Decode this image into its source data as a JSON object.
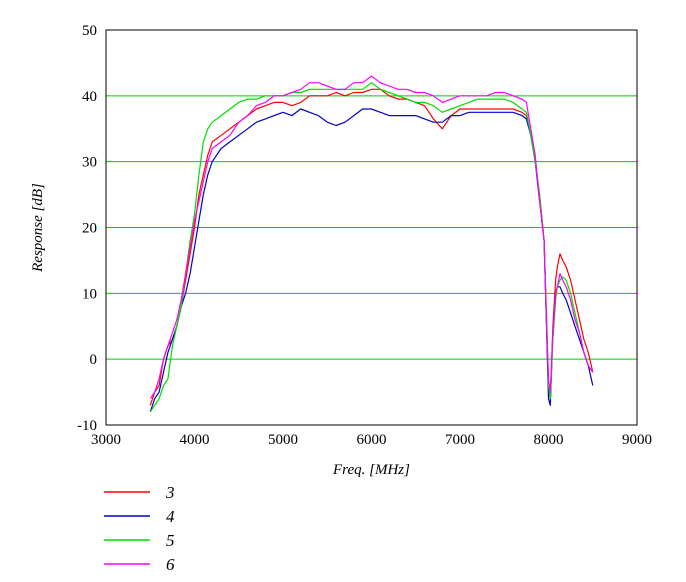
{
  "chart_data": {
    "type": "line",
    "title": "",
    "xlabel": "Freq. [MHz]",
    "ylabel": "Response [dB]",
    "xlim": [
      3000,
      9000
    ],
    "ylim": [
      -10,
      50
    ],
    "xticks": [
      3000,
      4000,
      5000,
      6000,
      7000,
      8000,
      9000
    ],
    "yticks": [
      -10,
      0,
      10,
      20,
      30,
      40,
      50
    ],
    "grid": "horizontal",
    "legend_position": "bottom-left",
    "series": [
      {
        "name": "3",
        "color": "#ff0000",
        "x": [
          3500,
          3550,
          3600,
          3650,
          3700,
          3750,
          3800,
          3850,
          3900,
          3950,
          4000,
          4050,
          4100,
          4150,
          4200,
          4300,
          4400,
          4500,
          4600,
          4700,
          4800,
          4900,
          5000,
          5100,
          5200,
          5300,
          5400,
          5500,
          5600,
          5700,
          5800,
          5900,
          6000,
          6100,
          6200,
          6300,
          6400,
          6500,
          6600,
          6700,
          6800,
          6900,
          7000,
          7100,
          7200,
          7300,
          7400,
          7500,
          7600,
          7700,
          7750,
          7800,
          7850,
          7900,
          7950,
          8000,
          8020,
          8050,
          8080,
          8100,
          8130,
          8160,
          8200,
          8250,
          8300,
          8350,
          8400,
          8450,
          8500
        ],
        "values": [
          -7,
          -5,
          -4,
          0,
          2,
          3,
          5,
          8,
          12,
          16,
          20,
          25,
          28,
          31,
          33,
          34,
          35,
          36,
          37,
          38,
          38.5,
          39,
          39,
          38.5,
          39,
          40,
          40,
          40,
          40.5,
          40,
          40.5,
          40.5,
          41,
          41,
          40,
          39.5,
          39.5,
          39,
          38.5,
          36.5,
          35,
          37,
          38,
          38,
          38,
          38,
          38,
          38,
          38,
          37.5,
          37,
          34,
          30,
          25,
          18,
          -5,
          -6,
          5,
          12,
          14,
          16,
          15,
          14,
          12,
          9,
          6,
          3,
          1,
          -2
        ]
      },
      {
        "name": "4",
        "color": "#0000cc",
        "x": [
          3500,
          3550,
          3600,
          3650,
          3700,
          3750,
          3800,
          3850,
          3900,
          3950,
          4000,
          4050,
          4100,
          4150,
          4200,
          4300,
          4400,
          4500,
          4600,
          4700,
          4800,
          4900,
          5000,
          5100,
          5200,
          5300,
          5400,
          5500,
          5600,
          5700,
          5800,
          5900,
          6000,
          6100,
          6200,
          6300,
          6400,
          6500,
          6600,
          6700,
          6800,
          6900,
          7000,
          7100,
          7200,
          7300,
          7400,
          7500,
          7600,
          7700,
          7750,
          7800,
          7850,
          7900,
          7950,
          8000,
          8020,
          8050,
          8080,
          8100,
          8130,
          8160,
          8200,
          8250,
          8300,
          8350,
          8400,
          8450,
          8500
        ],
        "values": [
          -8,
          -6,
          -5,
          -2,
          1,
          3,
          5,
          8,
          10,
          13,
          17,
          21,
          25,
          28,
          30,
          32,
          33,
          34,
          35,
          36,
          36.5,
          37,
          37.5,
          37,
          38,
          37.5,
          37,
          36,
          35.5,
          36,
          37,
          38,
          38,
          37.5,
          37,
          37,
          37,
          37,
          36.5,
          36,
          36,
          37,
          37,
          37.5,
          37.5,
          37.5,
          37.5,
          37.5,
          37.5,
          37,
          36.5,
          34,
          30,
          24,
          18,
          -6,
          -7,
          4,
          10,
          11,
          11,
          10,
          9,
          7,
          5,
          3,
          1,
          -1,
          -4
        ]
      },
      {
        "name": "5",
        "color": "#00dd00",
        "x": [
          3500,
          3550,
          3600,
          3650,
          3700,
          3750,
          3800,
          3850,
          3900,
          3950,
          4000,
          4050,
          4100,
          4150,
          4200,
          4300,
          4400,
          4500,
          4600,
          4700,
          4800,
          4900,
          5000,
          5100,
          5200,
          5300,
          5400,
          5500,
          5600,
          5700,
          5800,
          5900,
          6000,
          6100,
          6200,
          6300,
          6400,
          6500,
          6600,
          6700,
          6800,
          6900,
          7000,
          7100,
          7200,
          7300,
          7400,
          7500,
          7600,
          7700,
          7750,
          7800,
          7850,
          7900,
          7950,
          8000,
          8020,
          8050,
          8080,
          8100,
          8130,
          8160,
          8200,
          8250,
          8300,
          8350,
          8400,
          8450,
          8500
        ],
        "values": [
          -8,
          -7,
          -6,
          -4,
          -3,
          2,
          5,
          8,
          13,
          18,
          22,
          28,
          33,
          35,
          36,
          37,
          38,
          39,
          39.5,
          39.5,
          40,
          40,
          40,
          40.5,
          40.5,
          41,
          41,
          41,
          41,
          41,
          41,
          41,
          42,
          41,
          40.5,
          40,
          39.5,
          39,
          39,
          38.5,
          37.5,
          38,
          38.5,
          39,
          39.5,
          39.5,
          39.5,
          39.5,
          39,
          38,
          37.5,
          34,
          30,
          25,
          18,
          -4,
          -6,
          3,
          9,
          11,
          12,
          12.5,
          12,
          10,
          7,
          4,
          1,
          -1,
          -2
        ]
      },
      {
        "name": "6",
        "color": "#ff00ff",
        "x": [
          3500,
          3550,
          3600,
          3650,
          3700,
          3750,
          3800,
          3850,
          3900,
          3950,
          4000,
          4050,
          4100,
          4150,
          4200,
          4300,
          4400,
          4500,
          4600,
          4700,
          4800,
          4900,
          5000,
          5100,
          5200,
          5300,
          5400,
          5500,
          5600,
          5700,
          5800,
          5900,
          6000,
          6100,
          6200,
          6300,
          6400,
          6500,
          6600,
          6700,
          6800,
          6900,
          7000,
          7100,
          7200,
          7300,
          7400,
          7500,
          7600,
          7700,
          7750,
          7800,
          7850,
          7900,
          7950,
          8000,
          8020,
          8050,
          8080,
          8100,
          8130,
          8160,
          8200,
          8250,
          8300,
          8350,
          8400,
          8450,
          8500
        ],
        "values": [
          -6,
          -5,
          -3,
          0,
          2,
          4,
          6,
          9,
          13,
          17,
          21,
          24,
          27,
          30,
          32,
          33,
          34,
          36,
          37,
          38.5,
          39,
          40,
          40,
          40.5,
          41,
          42,
          42,
          41.5,
          41,
          41,
          42,
          42,
          43,
          42,
          41.5,
          41,
          41,
          40.5,
          40.5,
          40,
          39,
          39.5,
          40,
          40,
          40,
          40,
          40.5,
          40.5,
          40,
          39.5,
          39,
          35,
          31,
          24,
          18,
          -3,
          -5,
          4,
          10,
          11,
          13,
          12,
          11,
          9,
          6,
          4,
          1,
          -1,
          -2
        ]
      }
    ]
  }
}
